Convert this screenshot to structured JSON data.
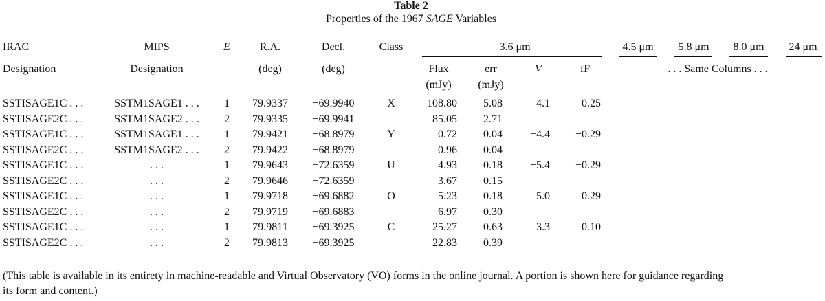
{
  "title": {
    "label": "Table 2",
    "caption_prefix": "Properties of the 1967 ",
    "caption_italic": "SAGE",
    "caption_suffix": " Variables"
  },
  "header": {
    "irac": "IRAC",
    "irac_sub": "Designation",
    "mips": "MIPS",
    "mips_sub": "Designation",
    "e": "E",
    "ra": "R.A.",
    "ra_unit": "(deg)",
    "decl": "Decl.",
    "decl_unit": "(deg)",
    "class": "Class",
    "band36": "3.6 μm",
    "flux": "Flux",
    "flux_unit": "(mJy)",
    "err": "err",
    "err_unit": "(mJy)",
    "v": "V",
    "ff": "fF",
    "band45": "4.5 μm",
    "band58": "5.8 μm",
    "band80": "8.0 μm",
    "band24": "24 μm",
    "same_columns": ". . . Same Columns . . ."
  },
  "rows": [
    {
      "irac": "SSTISAGE1C . . .",
      "mips": "SSTM1SAGE1 . . .",
      "e": "1",
      "ra": "79.9337",
      "decl": "−69.9940",
      "cls": "X",
      "flux": "108.80",
      "err": "5.08",
      "v": "4.1",
      "ff": "0.25"
    },
    {
      "irac": "SSTISAGE2C . . .",
      "mips": "SSTM1SAGE2 . . .",
      "e": "2",
      "ra": "79.9335",
      "decl": "−69.9941",
      "cls": "",
      "flux": "85.05",
      "err": "2.71",
      "v": "",
      "ff": ""
    },
    {
      "irac": "SSTISAGE1C . . .",
      "mips": "SSTM1SAGE1 . . .",
      "e": "1",
      "ra": "79.9421",
      "decl": "−68.8979",
      "cls": "Y",
      "flux": "0.72",
      "err": "0.04",
      "v": "−4.4",
      "ff": "−0.29"
    },
    {
      "irac": "SSTISAGE2C . . .",
      "mips": "SSTM1SAGE2 . . .",
      "e": "2",
      "ra": "79.9422",
      "decl": "−68.8979",
      "cls": "",
      "flux": "0.96",
      "err": "0.04",
      "v": "",
      "ff": ""
    },
    {
      "irac": "SSTISAGE1C . . .",
      "mips": ". . .",
      "e": "1",
      "ra": "79.9643",
      "decl": "−72.6359",
      "cls": "U",
      "flux": "4.93",
      "err": "0.18",
      "v": "−5.4",
      "ff": "−0.29"
    },
    {
      "irac": "SSTISAGE2C . . .",
      "mips": ". . .",
      "e": "2",
      "ra": "79.9646",
      "decl": "−72.6359",
      "cls": "",
      "flux": "3.67",
      "err": "0.15",
      "v": "",
      "ff": ""
    },
    {
      "irac": "SSTISAGE1C . . .",
      "mips": ". . .",
      "e": "1",
      "ra": "79.9718",
      "decl": "−69.6882",
      "cls": "O",
      "flux": "5.23",
      "err": "0.18",
      "v": "5.0",
      "ff": "0.29"
    },
    {
      "irac": "SSTISAGE2C . . .",
      "mips": ". . .",
      "e": "2",
      "ra": "79.9719",
      "decl": "−69.6883",
      "cls": "",
      "flux": "6.97",
      "err": "0.30",
      "v": "",
      "ff": ""
    },
    {
      "irac": "SSTISAGE1C . . .",
      "mips": ". . .",
      "e": "1",
      "ra": "79.9811",
      "decl": "−69.3925",
      "cls": "C",
      "flux": "25.27",
      "err": "0.63",
      "v": "3.3",
      "ff": "0.10"
    },
    {
      "irac": "SSTISAGE2C . . .",
      "mips": ". . .",
      "e": "2",
      "ra": "79.9813",
      "decl": "−69.3925",
      "cls": "",
      "flux": "22.83",
      "err": "0.39",
      "v": "",
      "ff": ""
    }
  ],
  "note": {
    "line1": "(This table is available in its entirety in machine-readable and Virtual Observatory (VO) forms in the online journal. A portion is shown here for guidance regarding",
    "line2": "its form and content.)"
  }
}
